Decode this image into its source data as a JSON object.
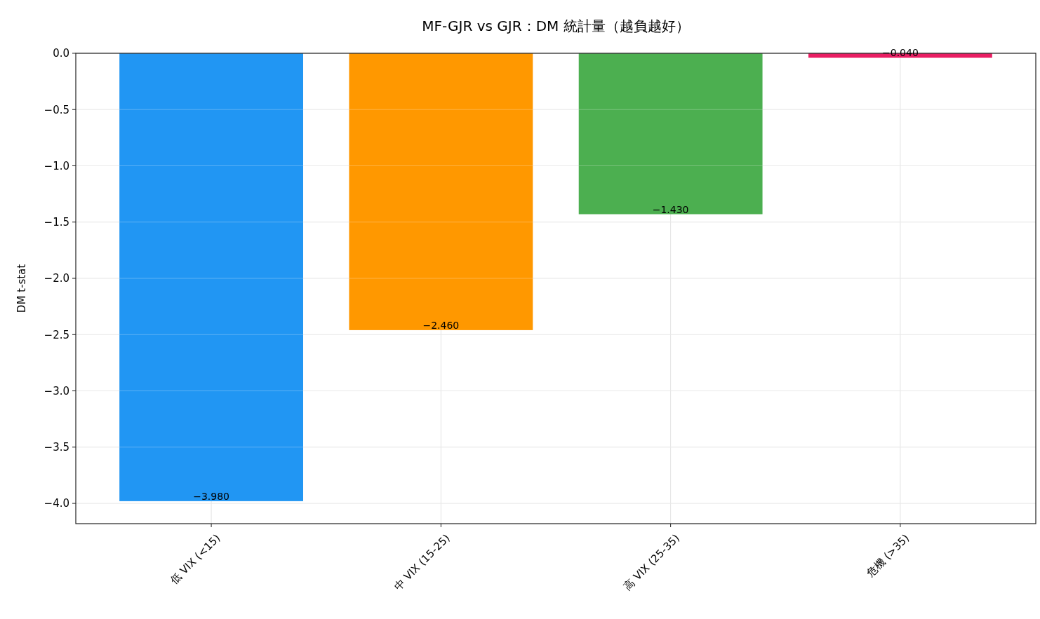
{
  "chart_data": {
    "type": "bar",
    "title": "MF-GJR vs GJR：DM 統計量（越負越好）",
    "ylabel": "DM t-stat",
    "categories": [
      "低 VIX (<15)",
      "中 VIX (15-25)",
      "高 VIX (25-35)",
      "危機 (>35)"
    ],
    "values": [
      -3.98,
      -2.46,
      -1.43,
      -0.04
    ],
    "colors": [
      "#2196f3",
      "#ff9800",
      "#4caf50",
      "#e91e63"
    ],
    "value_labels": [
      "−3.980",
      "−2.460",
      "−1.430",
      "−0.040"
    ],
    "ylim": [
      -4.18,
      0
    ],
    "yticks": [
      {
        "value": 0,
        "label": "0.0"
      },
      {
        "value": -0.5,
        "label": "−0.5"
      },
      {
        "value": -1,
        "label": "−1.0"
      },
      {
        "value": -1.5,
        "label": "−1.5"
      },
      {
        "value": -2,
        "label": "−2.0"
      },
      {
        "value": -2.5,
        "label": "−2.5"
      },
      {
        "value": -3,
        "label": "−3.0"
      },
      {
        "value": -3.5,
        "label": "−3.5"
      },
      {
        "value": -4,
        "label": "−4.0"
      }
    ],
    "grid": true
  }
}
